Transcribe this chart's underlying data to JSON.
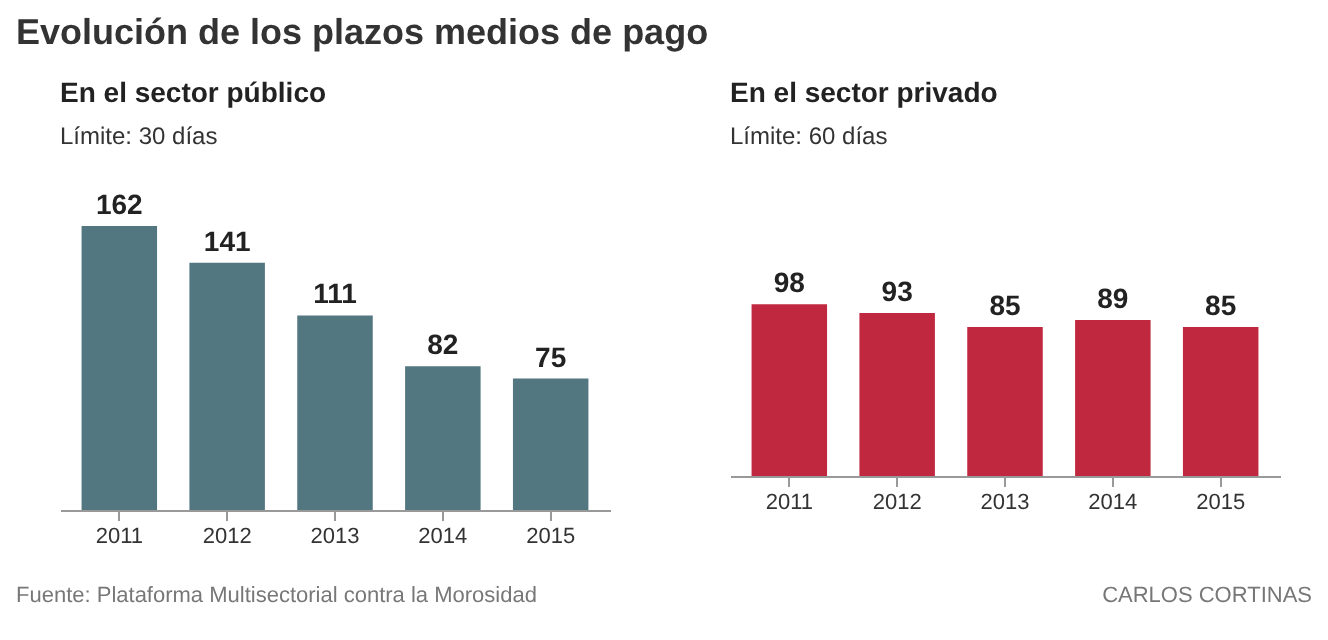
{
  "chart_data": [
    {
      "type": "other",
      "title": "Evolución de los plazos medios de pago"
    },
    {
      "type": "bar",
      "title": "En el sector público",
      "subtitle": "Límite: 30 días",
      "categories": [
        "2011",
        "2012",
        "2013",
        "2014",
        "2015"
      ],
      "values": [
        162,
        141,
        111,
        82,
        75
      ],
      "color": "#527780",
      "data_labels": true,
      "annotations": [
        "Fuente: Plataforma Multisectorial contra la Morosidad"
      ]
    },
    {
      "type": "bar",
      "title": "En el sector privado",
      "subtitle": "Límite: 60 días",
      "categories": [
        "2011",
        "2012",
        "2013",
        "2014",
        "2015"
      ],
      "values": [
        98,
        93,
        85,
        89,
        85
      ],
      "color": "#c0283f",
      "data_labels": true,
      "annotations": [
        "CARLOS CORTINAS"
      ]
    }
  ]
}
